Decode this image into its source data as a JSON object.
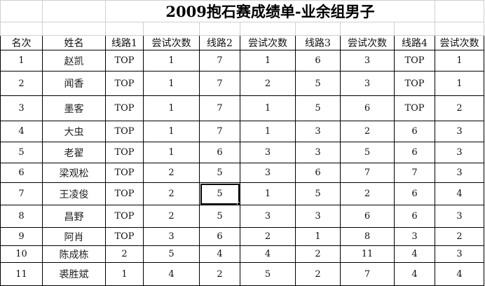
{
  "sheet": {
    "title": "2009抱石赛成绩单-业余组男子",
    "headers": [
      "名次",
      "姓名",
      "线路1",
      "尝试次数",
      "线路2",
      "尝试次数",
      "线路3",
      "尝试次数",
      "线路4",
      "尝试次数"
    ],
    "rows": [
      [
        "1",
        "赵凯",
        "TOP",
        "1",
        "7",
        "1",
        "6",
        "3",
        "TOP",
        "1"
      ],
      [
        "2",
        "闻香",
        "TOP",
        "1",
        "7",
        "2",
        "5",
        "3",
        "TOP",
        "1"
      ],
      [
        "3",
        "墨客",
        "TOP",
        "1",
        "7",
        "1",
        "5",
        "6",
        "TOP",
        "2"
      ],
      [
        "4",
        "大虫",
        "TOP",
        "1",
        "7",
        "1",
        "3",
        "2",
        "6",
        "3"
      ],
      [
        "5",
        "老翟",
        "TOP",
        "1",
        "6",
        "3",
        "3",
        "5",
        "6",
        "3"
      ],
      [
        "6",
        "梁观松",
        "TOP",
        "2",
        "5",
        "3",
        "6",
        "7",
        "7",
        "3"
      ],
      [
        "7",
        "王凌俊",
        "TOP",
        "2",
        "5",
        "1",
        "5",
        "2",
        "6",
        "4"
      ],
      [
        "8",
        "昌野",
        "TOP",
        "2",
        "5",
        "3",
        "3",
        "6",
        "6",
        "3"
      ],
      [
        "9",
        "阿肖",
        "TOP",
        "3",
        "6",
        "2",
        "1",
        "8",
        "3",
        "2"
      ],
      [
        "10",
        "陈成栋",
        "2",
        "5",
        "4",
        "4",
        "2",
        "11",
        "4",
        "3"
      ],
      [
        "11",
        "裘胜斌",
        "1",
        "4",
        "2",
        "5",
        "2",
        "7",
        "4",
        "4"
      ]
    ],
    "selected_cell": {
      "row": 7,
      "column": "线路2",
      "value": "5"
    }
  }
}
